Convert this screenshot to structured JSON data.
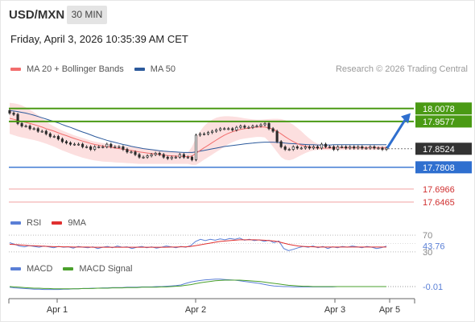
{
  "header": {
    "symbol": "USD/MXN",
    "timeframe": "30 MIN"
  },
  "date_line": "Friday, April 3, 2026 10:35:39 AM CET",
  "credit": "Research © 2026 Trading Central",
  "colors": {
    "ma20": "#f26d6d",
    "ma50": "#2c5a9c",
    "bollinger_fill": "#fbd4d4",
    "resistance": "#4a9a14",
    "support": "#2f6fcf",
    "support_light": "#f2a0a0",
    "current": "#333333",
    "arrow": "#2f6fcf",
    "candle": "#2b2b2b",
    "rsi": "#5a7fd6",
    "rsi_ma": "#e03030",
    "macd": "#5a7fd6",
    "macd_signal": "#4aa02c"
  },
  "legends": {
    "price": [
      {
        "label": "MA 20 + Bollinger Bands",
        "color": "#f26d6d"
      },
      {
        "label": "MA 50",
        "color": "#2c5a9c"
      }
    ],
    "rsi": [
      {
        "label": "RSI",
        "color": "#5a7fd6"
      },
      {
        "label": "9MA",
        "color": "#e03030"
      }
    ],
    "macd": [
      {
        "label": "MACD",
        "color": "#5a7fd6"
      },
      {
        "label": "MACD Signal",
        "color": "#4aa02c"
      }
    ]
  },
  "chart_data": [
    {
      "type": "line",
      "pane": "price",
      "x_ticks": [
        "Apr 1",
        "Apr 2",
        "Apr 3",
        "Apr 5"
      ],
      "ylim": [
        17.6,
        18.06
      ],
      "current_price": {
        "label": "17.8524",
        "value": 17.8524
      },
      "levels": [
        {
          "label": "18.0078",
          "value": 18.0078,
          "kind": "resistance"
        },
        {
          "label": "17.9577",
          "value": 17.9577,
          "kind": "resistance"
        },
        {
          "label": "17.7808",
          "value": 17.7808,
          "kind": "support"
        },
        {
          "label": "17.6966",
          "value": 17.6966,
          "kind": "support-light"
        },
        {
          "label": "17.6465",
          "value": 17.6465,
          "kind": "support-light"
        }
      ],
      "projection": {
        "from": 17.855,
        "to": 17.99
      },
      "series": [
        {
          "key": "close",
          "values": [
            17.99,
            17.985,
            17.95,
            17.94,
            17.94,
            17.93,
            17.93,
            17.92,
            17.92,
            17.91,
            17.9,
            17.9,
            17.89,
            17.88,
            17.875,
            17.87,
            17.87,
            17.87,
            17.86,
            17.86,
            17.85,
            17.86,
            17.86,
            17.86,
            17.87,
            17.86,
            17.86,
            17.86,
            17.85,
            17.84,
            17.84,
            17.83,
            17.82,
            17.82,
            17.825,
            17.83,
            17.835,
            17.83,
            17.82,
            17.815,
            17.82,
            17.82,
            17.83,
            17.82,
            17.82,
            17.81,
            17.905,
            17.91,
            17.91,
            17.915,
            17.92,
            17.925,
            17.93,
            17.93,
            17.93,
            17.925,
            17.935,
            17.94,
            17.935,
            17.935,
            17.94,
            17.94,
            17.945,
            17.95,
            17.93,
            17.92,
            17.88,
            17.86,
            17.85,
            17.85,
            17.86,
            17.855,
            17.855,
            17.86,
            17.855,
            17.86,
            17.855,
            17.87,
            17.86,
            17.86,
            17.85,
            17.86,
            17.86,
            17.855,
            17.86,
            17.855,
            17.86,
            17.855,
            17.855,
            17.86,
            17.855,
            17.855,
            17.85,
            17.855
          ]
        },
        {
          "key": "ma20",
          "values": [
            17.97,
            17.966,
            17.962,
            17.958,
            17.954,
            17.95,
            17.946,
            17.941,
            17.936,
            17.93,
            17.925,
            17.92,
            17.914,
            17.908,
            17.903,
            17.897,
            17.892,
            17.887,
            17.882,
            17.878,
            17.873,
            17.869,
            17.866,
            17.863,
            17.86,
            17.858,
            17.855,
            17.853,
            17.851,
            17.848,
            17.846,
            17.843,
            17.84,
            17.838,
            17.836,
            17.834,
            17.832,
            17.83,
            17.828,
            17.826,
            17.825,
            17.824,
            17.823,
            17.823,
            17.822,
            17.824,
            17.835,
            17.846,
            17.856,
            17.866,
            17.876,
            17.886,
            17.896,
            17.905,
            17.912,
            17.918,
            17.923,
            17.927,
            17.93,
            17.932,
            17.934,
            17.936,
            17.937,
            17.936,
            17.933,
            17.928,
            17.92,
            17.91,
            17.899,
            17.889,
            17.88,
            17.872,
            17.866,
            17.862,
            17.859,
            17.857,
            17.855,
            17.855,
            17.855,
            17.855,
            17.856,
            17.856,
            17.856,
            17.856,
            17.856,
            17.856,
            17.856,
            17.856,
            17.856,
            17.856,
            17.856,
            17.856,
            17.856,
            17.856
          ]
        },
        {
          "key": "bb_upper",
          "values": [
            18.03,
            18.028,
            18.025,
            18.02,
            18.012,
            18.003,
            17.993,
            17.982,
            17.97,
            17.958,
            17.947,
            17.938,
            17.93,
            17.923,
            17.916,
            17.91,
            17.904,
            17.899,
            17.894,
            17.889,
            17.884,
            17.88,
            17.877,
            17.874,
            17.872,
            17.87,
            17.868,
            17.866,
            17.864,
            17.862,
            17.86,
            17.857,
            17.855,
            17.853,
            17.851,
            17.849,
            17.847,
            17.845,
            17.843,
            17.841,
            17.84,
            17.839,
            17.838,
            17.838,
            17.838,
            17.86,
            17.895,
            17.92,
            17.94,
            17.955,
            17.965,
            17.972,
            17.976,
            17.978,
            17.978,
            17.977,
            17.975,
            17.973,
            17.97,
            17.968,
            17.966,
            17.965,
            17.965,
            17.966,
            17.967,
            17.968,
            17.968,
            17.967,
            17.963,
            17.955,
            17.945,
            17.933,
            17.92,
            17.905,
            17.892,
            17.88,
            17.872,
            17.868,
            17.866,
            17.864,
            17.864,
            17.864,
            17.864,
            17.864,
            17.864,
            17.864,
            17.864,
            17.864,
            17.864,
            17.864,
            17.864,
            17.864,
            17.864,
            17.864
          ]
        },
        {
          "key": "bb_lower",
          "values": [
            17.91,
            17.905,
            17.9,
            17.896,
            17.893,
            17.889,
            17.886,
            17.882,
            17.877,
            17.872,
            17.866,
            17.86,
            17.853,
            17.846,
            17.84,
            17.834,
            17.828,
            17.823,
            17.818,
            17.814,
            17.81,
            17.807,
            17.805,
            17.803,
            17.802,
            17.801,
            17.8,
            17.799,
            17.798,
            17.797,
            17.796,
            17.795,
            17.794,
            17.794,
            17.794,
            17.794,
            17.794,
            17.794,
            17.794,
            17.794,
            17.794,
            17.794,
            17.794,
            17.794,
            17.794,
            17.79,
            17.79,
            17.8,
            17.81,
            17.82,
            17.83,
            17.84,
            17.85,
            17.86,
            17.87,
            17.878,
            17.884,
            17.889,
            17.892,
            17.894,
            17.896,
            17.898,
            17.898,
            17.896,
            17.88,
            17.86,
            17.84,
            17.82,
            17.81,
            17.808,
            17.812,
            17.82,
            17.828,
            17.836,
            17.842,
            17.846,
            17.848,
            17.848,
            17.848,
            17.848,
            17.848,
            17.848,
            17.848,
            17.848,
            17.848,
            17.848,
            17.848,
            17.848,
            17.848,
            17.848,
            17.848,
            17.848,
            17.848,
            17.848
          ]
        },
        {
          "key": "ma50",
          "values": [
            18.0,
            17.998,
            17.996,
            17.993,
            17.99,
            17.986,
            17.982,
            17.977,
            17.972,
            17.967,
            17.962,
            17.957,
            17.952,
            17.946,
            17.94,
            17.935,
            17.929,
            17.923,
            17.917,
            17.912,
            17.906,
            17.9,
            17.895,
            17.89,
            17.885,
            17.881,
            17.877,
            17.873,
            17.869,
            17.866,
            17.862,
            17.859,
            17.856,
            17.853,
            17.851,
            17.849,
            17.847,
            17.845,
            17.843,
            17.842,
            17.841,
            17.84,
            17.839,
            17.838,
            17.838,
            17.838,
            17.84,
            17.843,
            17.846,
            17.849,
            17.852,
            17.855,
            17.858,
            17.861,
            17.863,
            17.865,
            17.867,
            17.869,
            17.871,
            17.873,
            17.874,
            17.876,
            17.877,
            17.878,
            17.878,
            17.878,
            17.877,
            17.876,
            17.874,
            17.873,
            17.872,
            17.871,
            17.87,
            17.869,
            17.868,
            17.868,
            17.867,
            17.867,
            17.867,
            17.867,
            17.868,
            17.868,
            17.868,
            17.868,
            17.868,
            17.868,
            17.868,
            17.868,
            17.868,
            17.868,
            17.868,
            17.868,
            17.868,
            17.868
          ]
        }
      ]
    },
    {
      "type": "line",
      "pane": "rsi",
      "ylim": [
        20,
        80
      ],
      "levels": [
        {
          "label": "70",
          "value": 70
        },
        {
          "label": "30",
          "value": 30
        }
      ],
      "current": {
        "label": "43.76",
        "value": 43.76
      },
      "series": [
        {
          "key": "rsi",
          "values": [
            52,
            48,
            44,
            42,
            45,
            43,
            41,
            44,
            42,
            40,
            43,
            41,
            42,
            39,
            43,
            41,
            40,
            42,
            38,
            41,
            43,
            40,
            44,
            41,
            42,
            38,
            41,
            43,
            40,
            42,
            39,
            41,
            44,
            42,
            40,
            43,
            41,
            45,
            55,
            60,
            57,
            60,
            58,
            61,
            59,
            62,
            60,
            63,
            58,
            60,
            57,
            59,
            55,
            58,
            52,
            56,
            38,
            33,
            36,
            40,
            43,
            41,
            44,
            40,
            43,
            38,
            42,
            40,
            43,
            41,
            44,
            42,
            40,
            43,
            41,
            38,
            40,
            43.76
          ]
        },
        {
          "key": "rsi_ma",
          "values": [
            48,
            47.5,
            47,
            46,
            45,
            44.5,
            44,
            43.5,
            43,
            42.5,
            42.5,
            42,
            42,
            41.5,
            41.5,
            41.5,
            41.5,
            41,
            41,
            41,
            41,
            41,
            41,
            41,
            41,
            41,
            41,
            41,
            41,
            41,
            41,
            41,
            41,
            41.5,
            41.5,
            42,
            42,
            43,
            45,
            47,
            49,
            51,
            53,
            55,
            56,
            57,
            58,
            59,
            59,
            59,
            59,
            58.5,
            58,
            57,
            56,
            54,
            51,
            48,
            46,
            44,
            43,
            42.5,
            42,
            41.5,
            41.5,
            41.5,
            41.5,
            41.5,
            41.5,
            41.5,
            41.5,
            41.5,
            41.5,
            41.5,
            41.5,
            41.5,
            41.5,
            41.5
          ]
        }
      ]
    },
    {
      "type": "line",
      "pane": "macd",
      "ylim": [
        -0.04,
        0.03
      ],
      "current": {
        "label": "-0.01",
        "value": -0.01
      },
      "series": [
        {
          "key": "macd",
          "values": [
            -0.012,
            -0.014,
            -0.015,
            -0.016,
            -0.017,
            -0.018,
            -0.018,
            -0.019,
            -0.019,
            -0.019,
            -0.019,
            -0.018,
            -0.018,
            -0.017,
            -0.017,
            -0.016,
            -0.016,
            -0.015,
            -0.015,
            -0.014,
            -0.014,
            -0.013,
            -0.013,
            -0.013,
            -0.012,
            -0.012,
            -0.012,
            -0.011,
            -0.011,
            -0.011,
            -0.01,
            -0.01,
            -0.009,
            -0.008,
            -0.007,
            -0.005,
            0.0,
            0.004,
            0.007,
            0.009,
            0.011,
            0.012,
            0.013,
            0.013,
            0.012,
            0.011,
            0.01,
            0.008,
            0.006,
            0.004,
            0.002,
            0.0,
            -0.003,
            -0.006,
            -0.008,
            -0.009,
            -0.01,
            -0.01,
            -0.011,
            -0.011,
            -0.011,
            -0.011,
            -0.011,
            -0.011,
            -0.011,
            -0.011,
            -0.011,
            -0.01,
            -0.01,
            -0.01,
            -0.01,
            -0.01,
            -0.01,
            -0.01,
            -0.01,
            -0.01,
            -0.01,
            -0.01
          ]
        },
        {
          "key": "macd_signal",
          "values": [
            -0.01,
            -0.011,
            -0.012,
            -0.013,
            -0.014,
            -0.015,
            -0.015,
            -0.016,
            -0.016,
            -0.017,
            -0.017,
            -0.017,
            -0.017,
            -0.017,
            -0.017,
            -0.016,
            -0.016,
            -0.016,
            -0.015,
            -0.015,
            -0.015,
            -0.014,
            -0.014,
            -0.014,
            -0.013,
            -0.013,
            -0.013,
            -0.012,
            -0.012,
            -0.012,
            -0.012,
            -0.011,
            -0.011,
            -0.01,
            -0.009,
            -0.008,
            -0.006,
            -0.004,
            -0.001,
            0.002,
            0.004,
            0.006,
            0.008,
            0.009,
            0.01,
            0.01,
            0.01,
            0.01,
            0.009,
            0.008,
            0.007,
            0.006,
            0.004,
            0.002,
            0.0,
            -0.002,
            -0.004,
            -0.006,
            -0.007,
            -0.008,
            -0.009,
            -0.009,
            -0.01,
            -0.01,
            -0.01,
            -0.01,
            -0.01,
            -0.01,
            -0.01,
            -0.01,
            -0.01,
            -0.01,
            -0.01,
            -0.01,
            -0.01,
            -0.01,
            -0.01,
            -0.01
          ]
        }
      ]
    }
  ]
}
